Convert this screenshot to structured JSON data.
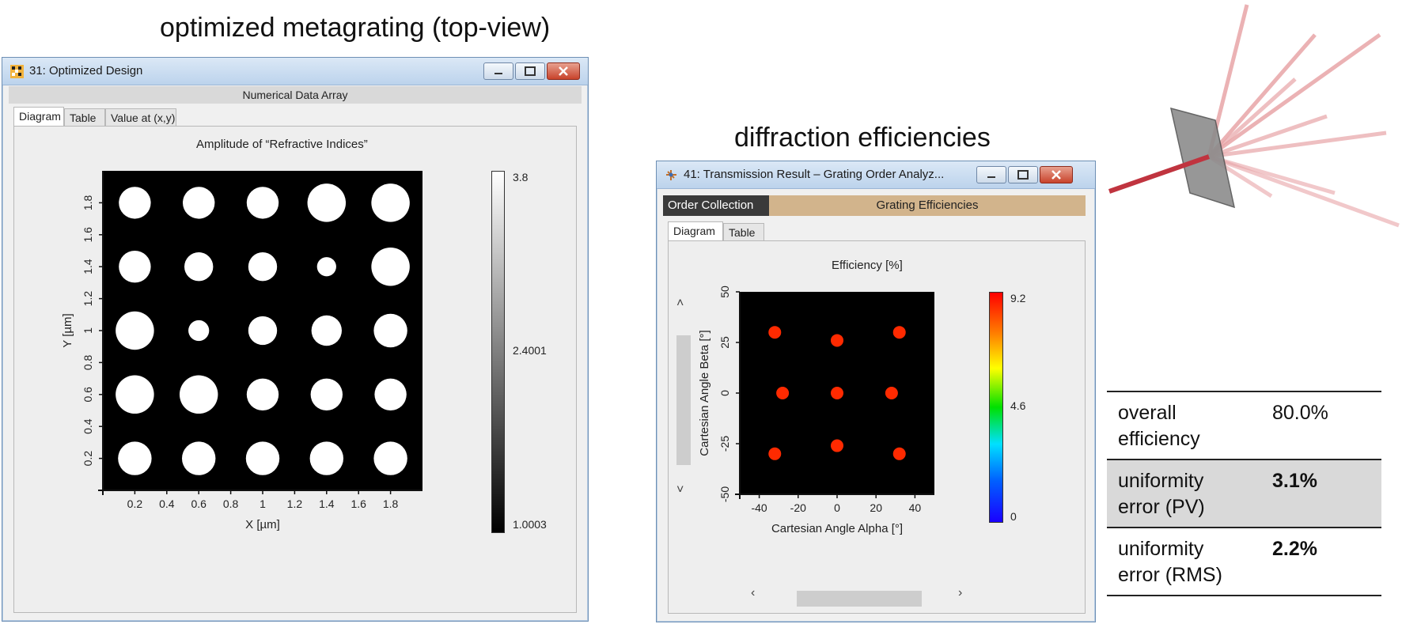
{
  "headings": {
    "left": "optimized metagrating (top-view)",
    "right": "diffraction efficiencies"
  },
  "window1": {
    "title": "31: Optimized Design",
    "subheader": "Numerical Data Array",
    "tabs": [
      {
        "label": "Diagram"
      },
      {
        "label": "Table"
      },
      {
        "label": "Value at (x,y)"
      }
    ],
    "plot_title": "Amplitude of “Refractive Indices”",
    "colorbar_labels": [
      "3.8",
      "2.4001",
      "1.0003"
    ],
    "colors": {
      "background": "#000000",
      "pillar": "#ffffff"
    }
  },
  "window2": {
    "title": "41: Transmission Result – Grating Order Analyz...",
    "toolbar": {
      "left": "Order Collection",
      "right": "Grating Efficiencies"
    },
    "tabs": [
      {
        "label": "Diagram"
      },
      {
        "label": "Table"
      }
    ],
    "plot_title": "Efficiency  [%]",
    "colorbar_labels": [
      "9.2",
      "4.6",
      "0"
    ],
    "colors": {
      "background": "#000000",
      "order": "#ff2a00",
      "toolbar_left": "#3a3a3a",
      "toolbar_right": "#d2b48c"
    }
  },
  "chart_data": [
    {
      "type": "scatter",
      "title": "Amplitude of “Refractive Indices”",
      "xlabel": "X [µm]",
      "ylabel": "Y [µm]",
      "xlim": [
        0,
        2
      ],
      "ylim": [
        0,
        2
      ],
      "xticks": [
        "0.2",
        "0.4",
        "0.6",
        "0.8",
        "1",
        "1.2",
        "1.4",
        "1.6",
        "1.8"
      ],
      "yticks": [
        "0.2",
        "0.4",
        "0.6",
        "0.8",
        "1",
        "1.2",
        "1.4",
        "1.6",
        "1.8"
      ],
      "colorbar": {
        "min": 1.0003,
        "mid": 2.4001,
        "max": 3.8
      },
      "pillars": [
        {
          "x": 0.2,
          "y": 1.8,
          "r": 0.1
        },
        {
          "x": 0.6,
          "y": 1.8,
          "r": 0.1
        },
        {
          "x": 1.0,
          "y": 1.8,
          "r": 0.1
        },
        {
          "x": 1.4,
          "y": 1.8,
          "r": 0.12
        },
        {
          "x": 1.8,
          "y": 1.8,
          "r": 0.12
        },
        {
          "x": 0.2,
          "y": 1.4,
          "r": 0.1
        },
        {
          "x": 0.6,
          "y": 1.4,
          "r": 0.09
        },
        {
          "x": 1.0,
          "y": 1.4,
          "r": 0.09
        },
        {
          "x": 1.4,
          "y": 1.4,
          "r": 0.06
        },
        {
          "x": 1.8,
          "y": 1.4,
          "r": 0.12
        },
        {
          "x": 0.2,
          "y": 1.0,
          "r": 0.12
        },
        {
          "x": 0.6,
          "y": 1.0,
          "r": 0.065
        },
        {
          "x": 1.0,
          "y": 1.0,
          "r": 0.09
        },
        {
          "x": 1.4,
          "y": 1.0,
          "r": 0.095
        },
        {
          "x": 1.8,
          "y": 1.0,
          "r": 0.105
        },
        {
          "x": 0.2,
          "y": 0.6,
          "r": 0.12
        },
        {
          "x": 0.6,
          "y": 0.6,
          "r": 0.12
        },
        {
          "x": 1.0,
          "y": 0.6,
          "r": 0.1
        },
        {
          "x": 1.4,
          "y": 0.6,
          "r": 0.1
        },
        {
          "x": 1.8,
          "y": 0.6,
          "r": 0.1
        },
        {
          "x": 0.2,
          "y": 0.2,
          "r": 0.105
        },
        {
          "x": 0.6,
          "y": 0.2,
          "r": 0.105
        },
        {
          "x": 1.0,
          "y": 0.2,
          "r": 0.105
        },
        {
          "x": 1.4,
          "y": 0.2,
          "r": 0.105
        },
        {
          "x": 1.8,
          "y": 0.2,
          "r": 0.105
        }
      ]
    },
    {
      "type": "scatter",
      "title": "Efficiency  [%]",
      "xlabel": "Cartesian Angle Alpha [°]",
      "ylabel": "Cartesian Angle Beta [°]",
      "xlim": [
        -50,
        50
      ],
      "ylim": [
        -50,
        50
      ],
      "xticks": [
        "-40",
        "-20",
        "0",
        "20",
        "40"
      ],
      "yticks": [
        "50",
        "25",
        "0",
        "-25",
        "-50"
      ],
      "colorbar": {
        "min": 0,
        "mid": 4.6,
        "max": 9.2
      },
      "points": [
        {
          "x": -32,
          "y": 30
        },
        {
          "x": 0,
          "y": 26
        },
        {
          "x": 32,
          "y": 30
        },
        {
          "x": -28,
          "y": 0
        },
        {
          "x": 0,
          "y": 0
        },
        {
          "x": 28,
          "y": 0
        },
        {
          "x": -32,
          "y": -30
        },
        {
          "x": 0,
          "y": -26
        },
        {
          "x": 32,
          "y": -30
        }
      ]
    }
  ],
  "metrics": [
    {
      "label": "overall\nefficiency",
      "value": "80.0%"
    },
    {
      "label": "uniformity\nerror (PV)",
      "value": "3.1%"
    },
    {
      "label": "uniformity\nerror (RMS)",
      "value": "2.2%"
    }
  ]
}
